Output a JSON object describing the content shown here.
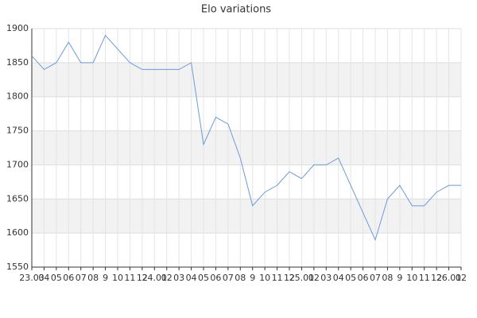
{
  "chart_data": {
    "type": "line",
    "title": "Elo variations",
    "categories": [
      "23.03",
      "04",
      "05",
      "06",
      "07",
      "08",
      "9",
      "10",
      "11",
      "12",
      "24.01",
      "02",
      "03",
      "04",
      "05",
      "06",
      "07",
      "08",
      "9",
      "10",
      "11",
      "12",
      "25.01",
      "02",
      "03",
      "04",
      "05",
      "06",
      "07",
      "08",
      "9",
      "10",
      "11",
      "12",
      "26.01",
      "02"
    ],
    "series": [
      {
        "name": "Elo",
        "color": "#6a9ae0",
        "values": [
          1860,
          1840,
          1850,
          1880,
          1850,
          1850,
          1890,
          1870,
          1850,
          1840,
          1840,
          1840,
          1840,
          1850,
          1730,
          1770,
          1760,
          1710,
          1640,
          1660,
          1670,
          1690,
          1680,
          1700,
          1700,
          1710,
          1670,
          1630,
          1590,
          1650,
          1670,
          1640,
          1640,
          1660,
          1670,
          1670
        ]
      }
    ],
    "ylim": [
      1550,
      1900
    ],
    "yticks": [
      1550,
      1600,
      1650,
      1700,
      1750,
      1800,
      1850,
      1900
    ],
    "grid": true
  }
}
